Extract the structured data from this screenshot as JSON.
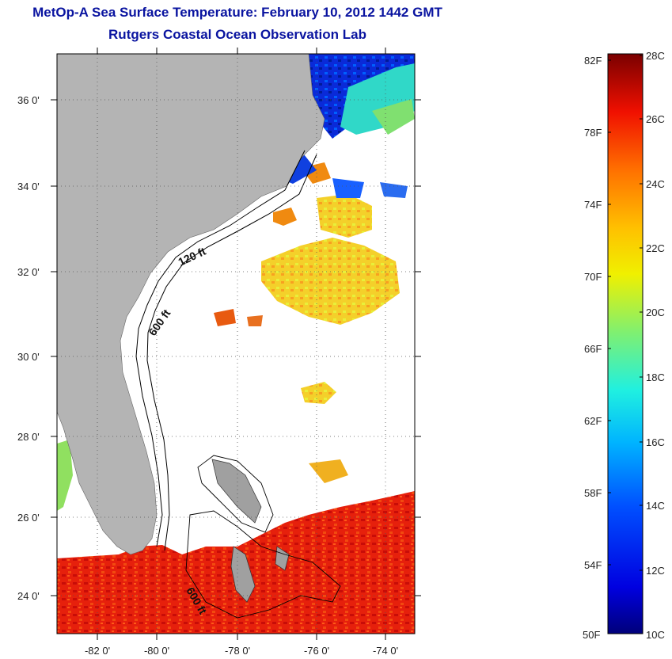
{
  "title": {
    "line1": "MetOp-A Sea Surface Temperature:  February 10, 2012 1442 GMT",
    "line2": "Rutgers Coastal Ocean Observation Lab"
  },
  "map": {
    "lat_ticks": [
      "36 0'",
      "34 0'",
      "32 0'",
      "30 0'",
      "28 0'",
      "26 0'",
      "24 0'"
    ],
    "lon_ticks": [
      "-82 0'",
      "-80 0'",
      "-78 0'",
      "-76 0'",
      "-74 0'"
    ],
    "contour_labels": [
      "120 ft",
      "600 ft",
      "600 ft"
    ],
    "colors": {
      "land": "#b4b4b4",
      "ocean_nodata": "#ffffff"
    }
  },
  "colorbar": {
    "fahrenheit": [
      "82F",
      "78F",
      "74F",
      "70F",
      "66F",
      "62F",
      "58F",
      "54F",
      "50F"
    ],
    "celsius": [
      "28C",
      "26C",
      "24C",
      "22C",
      "20C",
      "18C",
      "16C",
      "14C",
      "12C",
      "10C"
    ]
  }
}
